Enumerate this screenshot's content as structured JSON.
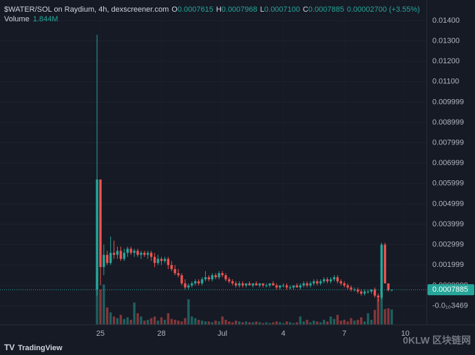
{
  "header": {
    "symbol": "$WATER/SOL on Raydium, 4h, dexscreener.com",
    "o_label": "O",
    "o": "0.0007615",
    "h_label": "H",
    "h": "0.0007968",
    "l_label": "L",
    "l": "0.0007100",
    "c_label": "C",
    "c": "0.0007885",
    "change": "0.00002700 (+3.55%)",
    "volume_label": "Volume",
    "volume": "1.844M"
  },
  "footer": {
    "brand": "TradingView",
    "watermark": "0KLW 区块链网"
  },
  "chart_data": {
    "type": "candlestick",
    "up_color": "#26a69a",
    "down_color": "#ef5350",
    "grid": true,
    "last_price_label": "0.0007885",
    "ylim": [
      -0.00093,
      0.01501
    ],
    "yticks": [
      {
        "value": 0.014,
        "label": "0.01400"
      },
      {
        "value": 0.013,
        "label": "0.01300"
      },
      {
        "value": 0.012,
        "label": "0.01200"
      },
      {
        "value": 0.011,
        "label": "0.01100"
      },
      0.009999,
      0.008999,
      0.007999,
      0.006999,
      0.005999,
      0.004999,
      0.003999,
      0.002999,
      0.001999,
      0.0009999,
      {
        "value": -3.469e-11,
        "label": "-0.0₁₀3469"
      }
    ],
    "xticks": [
      {
        "value": 1,
        "label": "25"
      },
      {
        "value": 19,
        "label": "28"
      },
      {
        "value": 37,
        "label": "Jul"
      },
      {
        "value": 55,
        "label": "4"
      },
      {
        "value": 73,
        "label": "7"
      },
      {
        "value": 91,
        "label": "10"
      }
    ],
    "open": [
      0.0008,
      0.0062,
      0.0019,
      0.0025,
      0.0021,
      0.0026,
      0.0025,
      0.0027,
      0.0023,
      0.0026,
      0.0028,
      0.0026,
      0.0027,
      0.0025,
      0.0026,
      0.0025,
      0.0026,
      0.0024,
      0.0021,
      0.0023,
      0.0022,
      0.0023,
      0.002,
      0.0018,
      0.0016,
      0.0015,
      0.0011,
      0.0009,
      0.001,
      0.0011,
      0.0012,
      0.0011,
      0.0013,
      0.0014,
      0.0013,
      0.0015,
      0.0014,
      0.0016,
      0.0015,
      0.0013,
      0.0012,
      0.0011,
      0.001,
      0.0011,
      0.001,
      0.0011,
      0.001,
      0.0011,
      0.001,
      0.0011,
      0.001,
      0.001,
      0.0011,
      0.001,
      0.0009,
      0.001,
      0.001,
      0.0009,
      0.0009,
      0.001,
      0.0009,
      0.001,
      0.0011,
      0.001,
      0.0011,
      0.0012,
      0.0011,
      0.0012,
      0.0013,
      0.0012,
      0.0013,
      0.0014,
      0.0012,
      0.0011,
      0.001,
      0.0009,
      0.0008,
      0.0008,
      0.0007,
      0.0006,
      0.0007,
      0.0007,
      0.0008,
      0.0005,
      0.0004,
      0.003,
      0.0011,
      0.0007615
    ],
    "high": [
      0.0133,
      0.0062,
      0.003,
      0.0027,
      0.0034,
      0.0032,
      0.0029,
      0.0029,
      0.0028,
      0.0029,
      0.0029,
      0.0028,
      0.0028,
      0.0027,
      0.0027,
      0.0027,
      0.0027,
      0.0026,
      0.0025,
      0.0024,
      0.0024,
      0.0024,
      0.0022,
      0.002,
      0.0018,
      0.0016,
      0.0013,
      0.0011,
      0.0012,
      0.0013,
      0.0013,
      0.0014,
      0.0017,
      0.0015,
      0.0016,
      0.0016,
      0.0017,
      0.0017,
      0.0016,
      0.0014,
      0.0013,
      0.0012,
      0.0012,
      0.0012,
      0.0011,
      0.0012,
      0.0011,
      0.0012,
      0.0011,
      0.0011,
      0.0011,
      0.0011,
      0.0012,
      0.0011,
      0.001,
      0.0011,
      0.0011,
      0.001,
      0.001,
      0.0011,
      0.0011,
      0.0012,
      0.0012,
      0.0012,
      0.0013,
      0.0013,
      0.0013,
      0.0014,
      0.0014,
      0.0014,
      0.0015,
      0.0015,
      0.0013,
      0.0012,
      0.0011,
      0.001,
      0.0009,
      0.0009,
      0.0008,
      0.0008,
      0.0008,
      0.0008,
      0.0009,
      0.0006,
      0.0031,
      0.0031,
      0.0011,
      0.0007968
    ],
    "low": [
      0.0005,
      0.001,
      0.0015,
      0.002,
      0.002,
      0.0023,
      0.0023,
      0.0022,
      0.0022,
      0.0024,
      0.0025,
      0.0024,
      0.0024,
      0.0023,
      0.0024,
      0.0023,
      0.0022,
      0.0019,
      0.002,
      0.002,
      0.0021,
      0.0018,
      0.0017,
      0.0015,
      0.0014,
      0.001,
      0.0008,
      0.0008,
      0.0009,
      0.001,
      0.001,
      0.001,
      0.0012,
      0.0012,
      0.0012,
      0.0013,
      0.0013,
      0.0014,
      0.0012,
      0.0011,
      0.001,
      0.0009,
      0.0009,
      0.0009,
      0.0009,
      0.001,
      0.0009,
      0.001,
      0.0009,
      0.0009,
      0.0009,
      0.0009,
      0.001,
      0.0008,
      0.0008,
      0.0009,
      0.0008,
      0.0008,
      0.0008,
      0.0009,
      0.0008,
      0.0009,
      0.0009,
      0.0009,
      0.001,
      0.001,
      0.001,
      0.0011,
      0.0011,
      0.0011,
      0.0012,
      0.0011,
      0.001,
      0.0009,
      0.0008,
      0.0007,
      0.0007,
      0.0006,
      0.0005,
      0.0005,
      0.0006,
      0.0006,
      0.0004,
      0.0002,
      0.0003,
      0.0011,
      0.0007,
      0.00071
    ],
    "close": [
      0.0062,
      0.0019,
      0.0025,
      0.0021,
      0.0026,
      0.0025,
      0.0027,
      0.0023,
      0.0026,
      0.0028,
      0.0026,
      0.0027,
      0.0025,
      0.0026,
      0.0025,
      0.0026,
      0.0024,
      0.0021,
      0.0023,
      0.0022,
      0.0023,
      0.002,
      0.0018,
      0.0016,
      0.0015,
      0.0011,
      0.0009,
      0.001,
      0.0011,
      0.0012,
      0.0011,
      0.0013,
      0.0014,
      0.0013,
      0.0015,
      0.0014,
      0.0016,
      0.0015,
      0.0013,
      0.0012,
      0.0011,
      0.001,
      0.0011,
      0.001,
      0.0011,
      0.001,
      0.0011,
      0.001,
      0.0011,
      0.001,
      0.001,
      0.0011,
      0.001,
      0.0009,
      0.001,
      0.001,
      0.0009,
      0.0009,
      0.001,
      0.0009,
      0.001,
      0.0011,
      0.001,
      0.0011,
      0.0012,
      0.0011,
      0.0012,
      0.0013,
      0.0012,
      0.0013,
      0.0014,
      0.0012,
      0.0011,
      0.001,
      0.0009,
      0.0008,
      0.0008,
      0.0007,
      0.0006,
      0.0007,
      0.0007,
      0.0008,
      0.0005,
      0.0004,
      0.003,
      0.0011,
      0.00076,
      0.0007885
    ],
    "volume": [
      6.7,
      4.3,
      4.9,
      2.1,
      1.5,
      1.0,
      0.8,
      1.2,
      0.7,
      0.9,
      0.6,
      2.7,
      1.4,
      1.0,
      0.5,
      0.6,
      0.8,
      1.0,
      0.5,
      0.9,
      0.6,
      1.4,
      0.7,
      0.6,
      0.5,
      0.4,
      0.8,
      3.1,
      1.0,
      0.8,
      0.6,
      0.5,
      0.4,
      0.4,
      0.3,
      0.5,
      0.4,
      1.0,
      0.6,
      0.4,
      0.3,
      0.5,
      0.4,
      0.3,
      0.4,
      0.3,
      0.3,
      0.4,
      0.3,
      0.2,
      0.3,
      0.2,
      0.3,
      0.4,
      0.3,
      0.2,
      0.4,
      0.3,
      0.2,
      0.3,
      1.0,
      0.4,
      0.6,
      0.3,
      0.5,
      0.4,
      0.3,
      0.6,
      0.4,
      1.0,
      0.7,
      1.2,
      0.5,
      0.6,
      0.4,
      0.8,
      0.5,
      0.6,
      0.9,
      0.4,
      1.4,
      0.6,
      1.8,
      3.2,
      4.4,
      1.9,
      2.0,
      1.844
    ]
  }
}
